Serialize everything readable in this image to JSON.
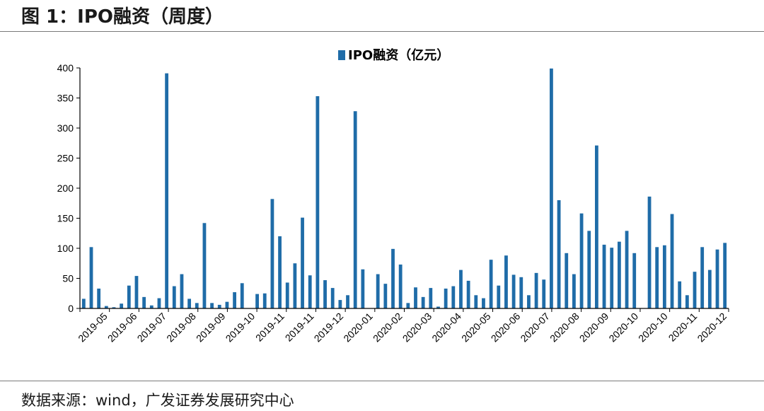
{
  "figure_title": "图 1：IPO融资（周度）",
  "source_note": "数据来源：wind，广发证券发展研究中心",
  "colors": {
    "bar": "#1f6ca8",
    "axis": "#000000",
    "rule": "#7a7a7a"
  },
  "chart_data": {
    "type": "bar",
    "legend": "IPO融资（亿元）",
    "legend_position": "top-center",
    "grid": false,
    "ylim": [
      0,
      400
    ],
    "yticks": [
      0,
      50,
      100,
      150,
      200,
      250,
      300,
      350,
      400
    ],
    "xtick_labels": [
      "2019-05",
      "2019-06",
      "2019-07",
      "2019-08",
      "2019-09",
      "2019-10",
      "2019-11",
      "2019-11",
      "2019-12",
      "2020-01",
      "2020-02",
      "2020-03",
      "2020-04",
      "2020-05",
      "2020-06",
      "2020-07",
      "2020-08",
      "2020-09",
      "2020-10",
      "2020-10",
      "2020-11",
      "2020-12"
    ],
    "values": [
      16,
      102,
      33,
      4,
      2,
      8,
      38,
      54,
      19,
      5,
      17,
      391,
      37,
      57,
      16,
      9,
      142,
      9,
      6,
      11,
      27,
      42,
      0,
      24,
      25,
      182,
      120,
      43,
      75,
      151,
      55,
      353,
      47,
      34,
      14,
      22,
      328,
      65,
      0,
      57,
      41,
      99,
      73,
      9,
      35,
      19,
      34,
      3,
      33,
      37,
      64,
      46,
      22,
      17,
      81,
      38,
      88,
      56,
      52,
      22,
      59,
      48,
      399,
      180,
      92,
      57,
      158,
      129,
      271,
      106,
      101,
      111,
      129,
      92,
      0,
      186,
      102,
      105,
      157,
      45,
      22,
      61,
      102,
      64,
      98,
      109
    ]
  }
}
